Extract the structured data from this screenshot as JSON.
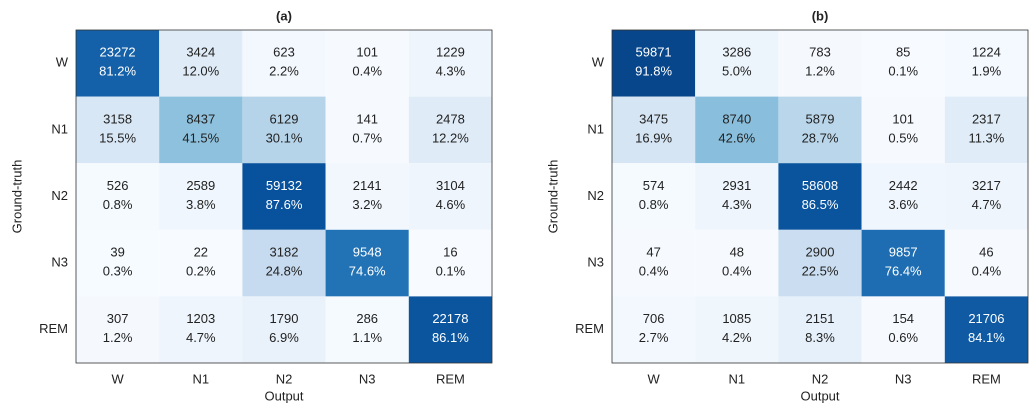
{
  "chart_data": [
    {
      "type": "heatmap",
      "title": "(a)",
      "x_label": "Output",
      "y_label": "Ground-truth",
      "x_categories": [
        "W",
        "N1",
        "N2",
        "N3",
        "REM"
      ],
      "y_categories": [
        "W",
        "N1",
        "N2",
        "N3",
        "REM"
      ],
      "values": [
        [
          23272,
          3424,
          623,
          101,
          1229
        ],
        [
          3158,
          8437,
          6129,
          141,
          2478
        ],
        [
          526,
          2589,
          59132,
          2141,
          3104
        ],
        [
          39,
          22,
          3182,
          9548,
          16
        ],
        [
          307,
          1203,
          1790,
          286,
          22178
        ]
      ],
      "percents": [
        [
          81.2,
          12.0,
          2.2,
          0.4,
          4.3
        ],
        [
          15.5,
          41.5,
          30.1,
          0.7,
          12.2
        ],
        [
          0.8,
          3.8,
          87.6,
          3.2,
          4.6
        ],
        [
          0.3,
          0.2,
          24.8,
          74.6,
          0.1
        ],
        [
          1.2,
          4.7,
          6.9,
          1.1,
          86.1
        ]
      ],
      "percent_labels": [
        [
          "81.2%",
          "12.0%",
          "2.2%",
          "0.4%",
          "4.3%"
        ],
        [
          "15.5%",
          "41.5%",
          "30.1%",
          "0.7%",
          "12.2%"
        ],
        [
          "0.8%",
          "3.8%",
          "87.6%",
          "3.2%",
          "4.6%"
        ],
        [
          "0.3%",
          "0.2%",
          "24.8%",
          "74.6%",
          "0.1%"
        ],
        [
          "1.2%",
          "4.7%",
          "6.9%",
          "1.1%",
          "86.1%"
        ]
      ],
      "colormap": [
        "#f7fbff",
        "#deebf7",
        "#c6dbef",
        "#9ecae1",
        "#6baed6",
        "#4292c6",
        "#2171b5",
        "#08519c",
        "#08306b"
      ],
      "clim": [
        0,
        100
      ]
    },
    {
      "type": "heatmap",
      "title": "(b)",
      "x_label": "Output",
      "y_label": "Ground-truth",
      "x_categories": [
        "W",
        "N1",
        "N2",
        "N3",
        "REM"
      ],
      "y_categories": [
        "W",
        "N1",
        "N2",
        "N3",
        "REM"
      ],
      "values": [
        [
          59871,
          3286,
          783,
          85,
          1224
        ],
        [
          3475,
          8740,
          5879,
          101,
          2317
        ],
        [
          574,
          2931,
          58608,
          2442,
          3217
        ],
        [
          47,
          48,
          2900,
          9857,
          46
        ],
        [
          706,
          1085,
          2151,
          154,
          21706
        ]
      ],
      "percents": [
        [
          91.8,
          5.0,
          1.2,
          0.1,
          1.9
        ],
        [
          16.9,
          42.6,
          28.7,
          0.5,
          11.3
        ],
        [
          0.8,
          4.3,
          86.5,
          3.6,
          4.7
        ],
        [
          0.4,
          0.4,
          22.5,
          76.4,
          0.4
        ],
        [
          2.7,
          4.2,
          8.3,
          0.6,
          84.1
        ]
      ],
      "percent_labels": [
        [
          "91.8%",
          "5.0%",
          "1.2%",
          "0.1%",
          "1.9%"
        ],
        [
          "16.9%",
          "42.6%",
          "28.7%",
          "0.5%",
          "11.3%"
        ],
        [
          "0.8%",
          "4.3%",
          "86.5%",
          "3.6%",
          "4.7%"
        ],
        [
          "0.4%",
          "0.4%",
          "22.5%",
          "76.4%",
          "0.4%"
        ],
        [
          "2.7%",
          "4.2%",
          "8.3%",
          "0.6%",
          "84.1%"
        ]
      ],
      "colormap": [
        "#f7fbff",
        "#deebf7",
        "#c6dbef",
        "#9ecae1",
        "#6baed6",
        "#4292c6",
        "#2171b5",
        "#08519c",
        "#08306b"
      ],
      "clim": [
        0,
        100
      ]
    }
  ]
}
